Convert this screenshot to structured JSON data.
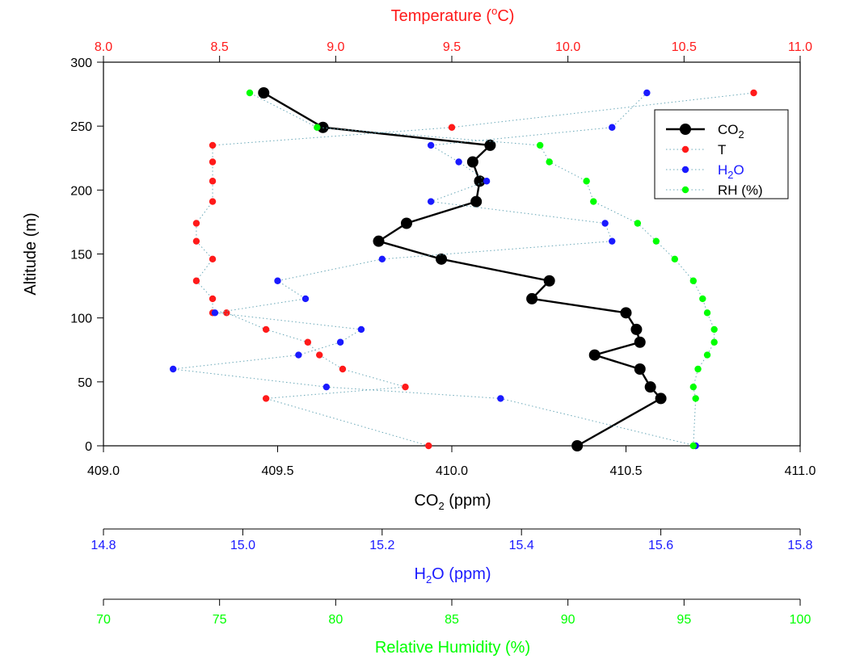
{
  "chart_data": {
    "type": "line",
    "ylabel": "Altitude (m)",
    "ylim": [
      0,
      300
    ],
    "yticks": [
      0,
      50,
      100,
      150,
      200,
      250,
      300
    ],
    "axes": {
      "temperature": {
        "label": "Temperature (",
        "label_degree": "o",
        "label_tail": "C)",
        "range": [
          8.0,
          11.0
        ],
        "ticks": [
          "8.0",
          "8.5",
          "9.0",
          "9.5",
          "10.0",
          "10.5",
          "11.0"
        ],
        "color": "#ff1a1a"
      },
      "co2": {
        "label": "CO",
        "label_sub": "2",
        "label_tail": " (ppm)",
        "range": [
          409.0,
          411.0
        ],
        "ticks": [
          "409.0",
          "409.5",
          "410.0",
          "410.5",
          "411.0"
        ],
        "color": "#000000"
      },
      "h2o": {
        "label": "H",
        "label_sub": "2",
        "label_tail": "O (ppm)",
        "range": [
          14.8,
          15.8
        ],
        "ticks": [
          "14.8",
          "15.0",
          "15.2",
          "15.4",
          "15.6",
          "15.8"
        ],
        "color": "#1a1aff"
      },
      "rh": {
        "label": "Relative Humidity (%)",
        "range": [
          70,
          100
        ],
        "ticks": [
          "70",
          "75",
          "80",
          "85",
          "90",
          "95",
          "100"
        ],
        "color": "#00ff00"
      }
    },
    "legend": {
      "placement": "top-right",
      "entries": [
        {
          "key": "co2",
          "text": "CO",
          "sub": "2",
          "color": "#000000"
        },
        {
          "key": "temperature",
          "text": "T",
          "sub": "",
          "color": "#000000"
        },
        {
          "key": "h2o",
          "text": "H",
          "sub": "2",
          "tail": "O",
          "color": "#1a1aff"
        },
        {
          "key": "rh",
          "text": "RH (%)",
          "sub": "",
          "color": "#000000"
        }
      ]
    },
    "series": [
      {
        "key": "co2",
        "axis": "co2",
        "color": "#000000",
        "points": [
          [
            410.36,
            0
          ],
          [
            410.6,
            37
          ],
          [
            410.57,
            46
          ],
          [
            410.54,
            60
          ],
          [
            410.41,
            71
          ],
          [
            410.54,
            81
          ],
          [
            410.53,
            91
          ],
          [
            410.5,
            104
          ],
          [
            410.23,
            115
          ],
          [
            410.28,
            129
          ],
          [
            409.97,
            146
          ],
          [
            409.79,
            160
          ],
          [
            409.87,
            174
          ],
          [
            410.07,
            191
          ],
          [
            410.08,
            207
          ],
          [
            410.06,
            222
          ],
          [
            410.11,
            235
          ],
          [
            409.63,
            249
          ],
          [
            409.46,
            276
          ]
        ]
      },
      {
        "key": "temperature",
        "axis": "temperature",
        "color": "#ff1a1a",
        "points": [
          [
            9.4,
            0
          ],
          [
            8.7,
            37
          ],
          [
            9.3,
            46
          ],
          [
            9.03,
            60
          ],
          [
            8.93,
            71
          ],
          [
            8.88,
            81
          ],
          [
            8.7,
            91
          ],
          [
            8.53,
            104
          ],
          [
            8.47,
            104
          ],
          [
            8.47,
            115
          ],
          [
            8.4,
            129
          ],
          [
            8.47,
            146
          ],
          [
            8.4,
            160
          ],
          [
            8.4,
            174
          ],
          [
            8.47,
            191
          ],
          [
            8.47,
            207
          ],
          [
            8.47,
            222
          ],
          [
            8.47,
            235
          ],
          [
            9.5,
            249
          ],
          [
            10.8,
            276
          ]
        ]
      },
      {
        "key": "h2o",
        "axis": "h2o",
        "color": "#1a1aff",
        "points": [
          [
            15.65,
            0
          ],
          [
            15.37,
            37
          ],
          [
            15.12,
            46
          ],
          [
            14.9,
            60
          ],
          [
            15.08,
            71
          ],
          [
            15.14,
            81
          ],
          [
            15.17,
            91
          ],
          [
            14.96,
            104
          ],
          [
            15.09,
            115
          ],
          [
            15.05,
            129
          ],
          [
            15.2,
            146
          ],
          [
            15.53,
            160
          ],
          [
            15.52,
            174
          ],
          [
            15.27,
            191
          ],
          [
            15.35,
            207
          ],
          [
            15.31,
            222
          ],
          [
            15.27,
            235
          ],
          [
            15.53,
            249
          ],
          [
            15.58,
            276
          ]
        ]
      },
      {
        "key": "rh",
        "axis": "rh",
        "color": "#00ff00",
        "points": [
          [
            95.4,
            0
          ],
          [
            95.5,
            37
          ],
          [
            95.4,
            46
          ],
          [
            95.6,
            60
          ],
          [
            96.0,
            71
          ],
          [
            96.3,
            81
          ],
          [
            96.3,
            91
          ],
          [
            96.0,
            104
          ],
          [
            95.8,
            115
          ],
          [
            95.4,
            129
          ],
          [
            94.6,
            146
          ],
          [
            93.8,
            160
          ],
          [
            93.0,
            174
          ],
          [
            91.1,
            191
          ],
          [
            90.8,
            207
          ],
          [
            89.2,
            222
          ],
          [
            88.8,
            235
          ],
          [
            79.2,
            249
          ],
          [
            76.3,
            276
          ]
        ]
      }
    ]
  }
}
